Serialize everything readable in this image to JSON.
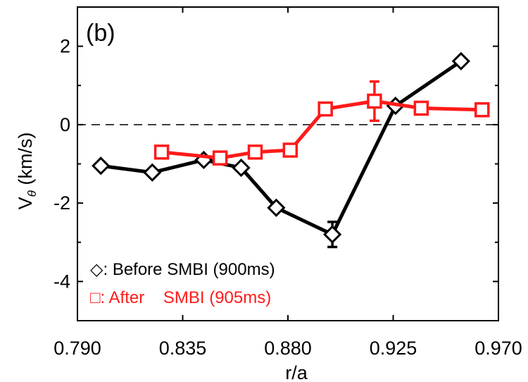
{
  "chart_data": {
    "type": "line",
    "panel_label": "(b)",
    "xlabel": "r/a",
    "ylabel_main": "V",
    "ylabel_sub": "θ",
    "ylabel_unit": " (km/s)",
    "xlim": [
      0.79,
      0.97
    ],
    "ylim": [
      -5,
      3
    ],
    "xticks": [
      0.79,
      0.835,
      0.88,
      0.925,
      0.97
    ],
    "xtick_labels": [
      "0.790",
      "0.835",
      "0.880",
      "0.925",
      "0.970"
    ],
    "yticks": [
      2,
      0,
      -2,
      -4
    ],
    "ytick_labels": [
      "2",
      "0",
      "-2",
      "-4"
    ],
    "zero_line": {
      "y": 0,
      "style": "dashed"
    },
    "series": [
      {
        "name": "Before SMBI (900ms)",
        "legend_symbol": "◇",
        "legend_sep": ": ",
        "color": "#000000",
        "marker": "diamond",
        "x": [
          0.8,
          0.822,
          0.844,
          0.86,
          0.875,
          0.899,
          0.926,
          0.954
        ],
        "y": [
          -1.05,
          -1.22,
          -0.9,
          -1.1,
          -2.12,
          -2.8,
          0.48,
          1.62
        ],
        "errors": [
          0,
          0,
          0,
          0,
          0,
          0.32,
          0,
          0
        ]
      },
      {
        "name": "After    SMBI (905ms)",
        "legend_symbol": "□",
        "legend_sep": ": ",
        "color": "#ff1a1a",
        "marker": "square",
        "x": [
          0.826,
          0.851,
          0.866,
          0.881,
          0.896,
          0.917,
          0.937,
          0.963
        ],
        "y": [
          -0.7,
          -0.85,
          -0.7,
          -0.65,
          0.4,
          0.6,
          0.42,
          0.38
        ],
        "errors": [
          0,
          0,
          0,
          0,
          0,
          0.5,
          0,
          0
        ]
      }
    ]
  }
}
